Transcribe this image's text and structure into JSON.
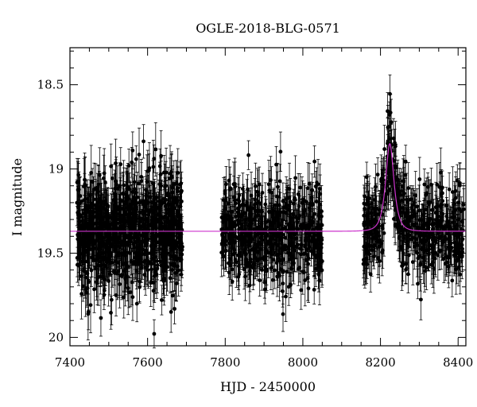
{
  "chart_data": {
    "type": "scatter",
    "title": "OGLE-2018-BLG-0571",
    "xlabel": "HJD - 2450000",
    "ylabel": "I magnitude",
    "xlim": [
      7400,
      8420
    ],
    "ylim": [
      20.05,
      18.28
    ],
    "y_inverted": true,
    "x_ticks": [
      7400,
      7600,
      7800,
      8000,
      8200,
      8400
    ],
    "x_tick_labels": [
      "7400",
      "7600",
      "7800",
      "8000",
      "8200",
      "8400"
    ],
    "y_ticks": [
      18.5,
      19,
      19.5,
      20
    ],
    "y_tick_labels": [
      "18.5",
      "19",
      "19.5",
      "20"
    ],
    "grid": false,
    "colors": {
      "data": "#000000",
      "model": "#cc33cc"
    },
    "series": [
      {
        "kind": "photometry",
        "seasons": [
          {
            "x_range": [
              7418,
              7690
            ],
            "mean_mag": 19.37,
            "scatter_mag": 0.16,
            "error_bar_mag": 0.13
          },
          {
            "x_range": [
              7790,
              8050
            ],
            "mean_mag": 19.37,
            "scatter_mag": 0.14,
            "error_bar_mag": 0.12
          },
          {
            "x_range": [
              8155,
              8415
            ],
            "mean_mag": 19.37,
            "scatter_mag": 0.13,
            "error_bar_mag": 0.12
          }
        ]
      },
      {
        "kind": "model",
        "baseline_mag": 19.37,
        "peak_x": 8224,
        "peak_mag": 18.85,
        "t_e_days": 15
      }
    ]
  }
}
